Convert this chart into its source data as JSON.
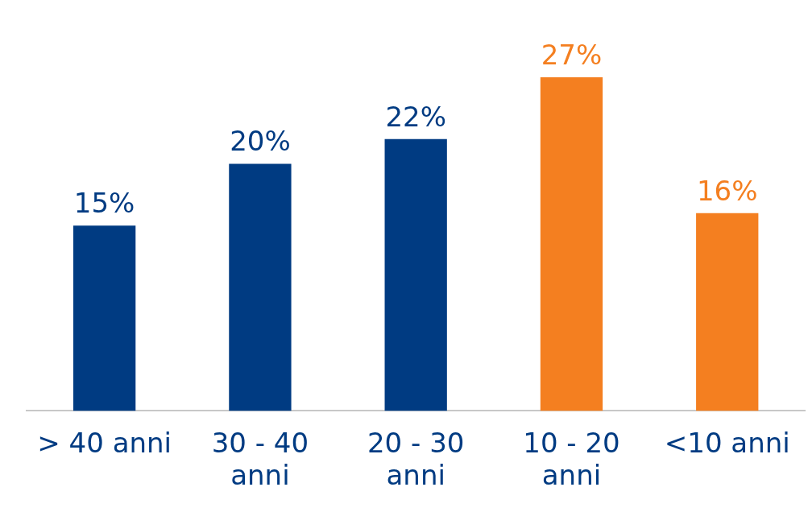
{
  "chart_data": {
    "type": "bar",
    "categories": [
      "> 40 anni",
      "30 - 40 anni",
      "20 - 30 anni",
      "10 - 20 anni",
      "<10 anni"
    ],
    "values": [
      15,
      20,
      22,
      27,
      16
    ],
    "colors": [
      "#003b82",
      "#003b82",
      "#003b82",
      "#f47f20",
      "#f47f20"
    ],
    "value_labels": [
      "15%",
      "20%",
      "22%",
      "27%",
      "16%"
    ],
    "tick_labels": "x",
    "grid": false,
    "legend": false
  }
}
